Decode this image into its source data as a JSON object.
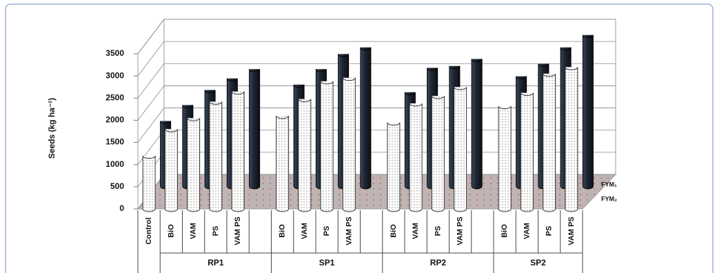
{
  "chart_data": {
    "type": "bar3d",
    "y_label": "Seeds (kg ha⁻¹)",
    "categories": [
      "Control",
      "BiO",
      "VAM",
      "PS",
      "VAM PS",
      null,
      "BiO",
      "VAM",
      "PS",
      "VAM PS",
      null,
      "BiO",
      "VAM",
      "PS",
      "VAM PS",
      null,
      "BiO",
      "VAM",
      "PS",
      "VAM PS"
    ],
    "category_groups": [
      null,
      "RP1",
      "RP1",
      "RP1",
      "RP1",
      "RP1",
      "SP1",
      "SP1",
      "SP1",
      "SP1",
      "SP1",
      "RP2",
      "RP2",
      "RP2",
      "RP2",
      "RP2",
      "SP2",
      "SP2",
      "SP2",
      "SP2"
    ],
    "series": [
      {
        "name": "FYM₁",
        "color": "#1e2633",
        "values": [
          1470,
          1830,
          2170,
          2430,
          2640,
          null,
          2290,
          2640,
          2980,
          3130,
          null,
          2120,
          2670,
          2710,
          2870,
          null,
          2480,
          2760,
          3130,
          3410
        ]
      },
      {
        "name": "FYM₂",
        "color": "#ffffff",
        "values": [
          1200,
          1800,
          2050,
          2420,
          2650,
          null,
          2100,
          2480,
          2880,
          2960,
          null,
          1950,
          2380,
          2550,
          2750,
          null,
          2320,
          2620,
          3050,
          3200
        ]
      }
    ],
    "ylim": [
      0,
      3500
    ],
    "yticks": [
      0,
      500,
      1000,
      1500,
      2000,
      2500,
      3000,
      3500
    ],
    "grid": true
  }
}
